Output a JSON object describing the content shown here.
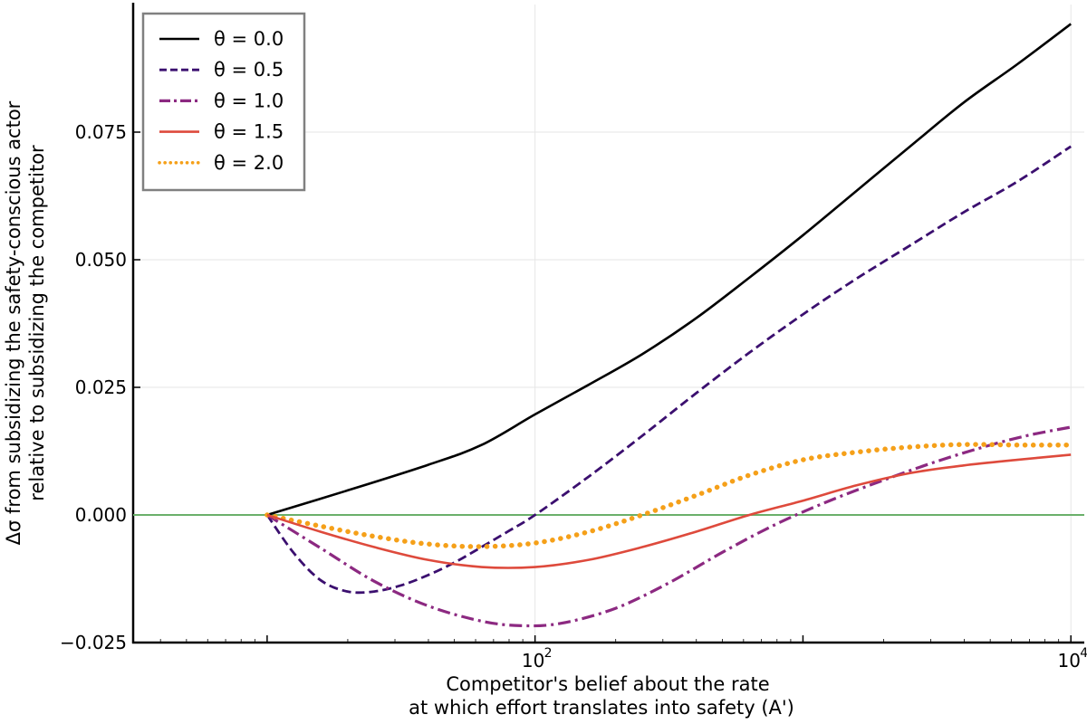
{
  "chart_data": {
    "type": "line",
    "xscale": "log",
    "xlim_log10": [
      0.5,
      4.05
    ],
    "ylim": [
      -0.025,
      0.1
    ],
    "x_ticks": [
      {
        "value_log10": 2,
        "base": "10",
        "exp": "2"
      },
      {
        "value_log10": 4,
        "base": "10",
        "exp": "4"
      }
    ],
    "y_ticks": [
      {
        "value": -0.025,
        "label": "−0.025"
      },
      {
        "value": 0.0,
        "label": "0.000"
      },
      {
        "value": 0.025,
        "label": "0.025"
      },
      {
        "value": 0.05,
        "label": "0.050"
      },
      {
        "value": 0.075,
        "label": "0.075"
      }
    ],
    "xlabel": [
      "Competitor's belief about the rate",
      "at which effort translates into safety (A')"
    ],
    "ylabel": [
      "Δσ from subsidizing the safety-conscious actor",
      "relative to subsidizing the competitor"
    ],
    "grid": true,
    "legend_position": "top-left",
    "reference_line": {
      "y": 0.0,
      "color": "#6ab06a"
    },
    "series": [
      {
        "name": "θ = 0.0",
        "color": "#000000",
        "style": "solid",
        "x_log10": [
          1.0,
          1.3,
          1.6,
          1.8,
          2.0,
          2.2,
          2.4,
          2.6,
          2.8,
          3.0,
          3.2,
          3.4,
          3.6,
          3.8,
          4.0
        ],
        "y": [
          0.0,
          0.0048,
          0.0098,
          0.0137,
          0.0197,
          0.0255,
          0.0315,
          0.0385,
          0.0465,
          0.0548,
          0.0635,
          0.0722,
          0.0808,
          0.0883,
          0.0962
        ]
      },
      {
        "name": "θ = 0.5",
        "color": "#3b0f6f",
        "style": "dashed",
        "x_log10": [
          1.0,
          1.1,
          1.2,
          1.3,
          1.4,
          1.5,
          1.6,
          1.7,
          1.8,
          1.9,
          2.0,
          2.2,
          2.4,
          2.6,
          2.8,
          3.0,
          3.2,
          3.4,
          3.6,
          3.8,
          4.0
        ],
        "y": [
          0.0,
          -0.0075,
          -0.0128,
          -0.015,
          -0.015,
          -0.0138,
          -0.0118,
          -0.0093,
          -0.0063,
          -0.0032,
          0.0,
          0.0075,
          0.0155,
          0.0238,
          0.0318,
          0.0393,
          0.0463,
          0.0528,
          0.0593,
          0.0653,
          0.0722
        ]
      },
      {
        "name": "θ = 1.0",
        "color": "#8c2981",
        "style": "dashdot",
        "x_log10": [
          1.0,
          1.2,
          1.4,
          1.6,
          1.8,
          1.95,
          2.1,
          2.3,
          2.5,
          2.7,
          2.9,
          3.1,
          3.3,
          3.5,
          3.7,
          3.85,
          4.0
        ],
        "y": [
          0.0,
          -0.0065,
          -0.013,
          -0.0178,
          -0.0208,
          -0.0217,
          -0.0212,
          -0.0183,
          -0.0133,
          -0.0073,
          -0.0018,
          0.0028,
          0.0068,
          0.0105,
          0.0137,
          0.0157,
          0.0172
        ]
      },
      {
        "name": "θ = 1.5",
        "color": "#de4a3c",
        "style": "solid",
        "x_log10": [
          1.0,
          1.2,
          1.4,
          1.6,
          1.8,
          2.0,
          2.2,
          2.4,
          2.6,
          2.8,
          3.0,
          3.2,
          3.4,
          3.6,
          3.8,
          4.0
        ],
        "y": [
          0.0,
          -0.0033,
          -0.0063,
          -0.0088,
          -0.0102,
          -0.0102,
          -0.0088,
          -0.0063,
          -0.0033,
          0.0,
          0.0028,
          0.0058,
          0.0082,
          0.0097,
          0.0108,
          0.0118
        ]
      },
      {
        "name": "θ = 2.0",
        "color": "#f5a019",
        "style": "dotted",
        "x_log10": [
          1.0,
          1.2,
          1.4,
          1.6,
          1.8,
          2.0,
          2.2,
          2.4,
          2.6,
          2.8,
          3.0,
          3.2,
          3.4,
          3.6,
          3.8,
          4.0
        ],
        "y": [
          0.0,
          -0.0022,
          -0.0042,
          -0.0057,
          -0.0062,
          -0.0055,
          -0.0033,
          0.0,
          0.0038,
          0.0078,
          0.0108,
          0.0123,
          0.0133,
          0.0138,
          0.0137,
          0.0137
        ]
      }
    ]
  }
}
